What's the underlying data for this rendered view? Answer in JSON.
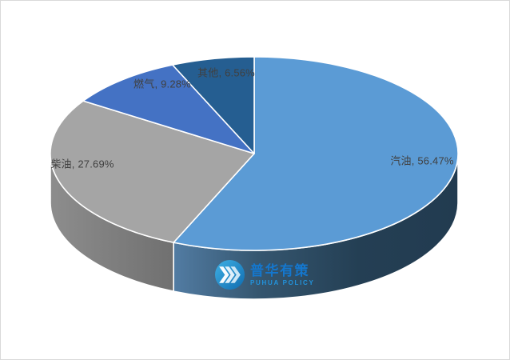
{
  "chart_data": {
    "type": "pie",
    "style": "3d",
    "title": "",
    "categories": [
      "汽油",
      "柴油",
      "燃气",
      "其他"
    ],
    "values": [
      56.47,
      27.69,
      9.28,
      6.56
    ],
    "labels": [
      "汽油, 56.47%",
      "柴油, 27.69%",
      "燃气, 9.28%",
      "其他, 6.56%"
    ],
    "colors": [
      "#5B9BD5",
      "#A5A5A5",
      "#4472C4",
      "#255E91"
    ],
    "label_color": "#404040",
    "start_angle_deg": 0,
    "direction": "clockwise",
    "legend": "none",
    "data_labels": "inside, category + percent"
  },
  "watermark": {
    "brand_cn": "普华有策",
    "brand_en": "PUHUA POLICY",
    "brand_color": "#1477CE",
    "icon": "triple-chevron-circle-icon"
  }
}
